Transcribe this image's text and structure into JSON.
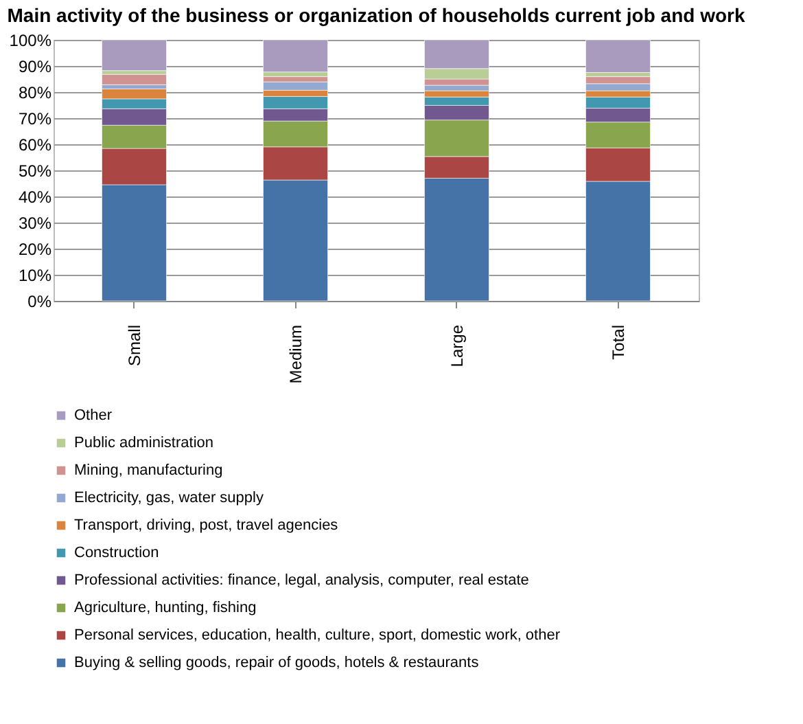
{
  "chart_data": {
    "type": "bar",
    "stacked": true,
    "title": "Main activity of the business or organization of households current job and work",
    "categories": [
      "Small",
      "Medium",
      "Large",
      "Total"
    ],
    "series": [
      {
        "name": "Buying & selling goods, repair of goods, hotels & restaurants",
        "color": "#4572a7",
        "values": [
          44.5,
          46.3,
          47.0,
          45.8
        ]
      },
      {
        "name": "Personal services, education, health, culture, sport, domestic work, other",
        "color": "#aa4643",
        "values": [
          13.9,
          12.7,
          8.3,
          12.8
        ]
      },
      {
        "name": "Agriculture, hunting, fishing",
        "color": "#89a54e",
        "values": [
          8.9,
          9.9,
          14.0,
          9.9
        ]
      },
      {
        "name": "Professional activities: finance, legal, analysis, computer, real estate",
        "color": "#71588f",
        "values": [
          6.3,
          4.7,
          5.6,
          5.3
        ]
      },
      {
        "name": "Construction",
        "color": "#4198af",
        "values": [
          3.8,
          4.7,
          3.2,
          4.3
        ]
      },
      {
        "name": "Transport, driving, post, travel agencies",
        "color": "#db843d",
        "values": [
          3.8,
          2.4,
          2.4,
          2.4
        ]
      },
      {
        "name": "Electricity, gas, water supply",
        "color": "#93a9cf",
        "values": [
          1.6,
          3.2,
          2.1,
          2.7
        ]
      },
      {
        "name": "Mining, manufacturing",
        "color": "#d19392",
        "values": [
          4.0,
          2.0,
          2.4,
          2.7
        ]
      },
      {
        "name": "Public administration",
        "color": "#b9cd96",
        "values": [
          1.4,
          1.8,
          4.0,
          1.6
        ]
      },
      {
        "name": "Other",
        "color": "#a99bbd",
        "values": [
          11.8,
          12.3,
          11.0,
          12.5
        ]
      }
    ],
    "ylim": [
      0,
      100
    ],
    "yticks": [
      {
        "value": 0,
        "label": "0%"
      },
      {
        "value": 10,
        "label": "10%"
      },
      {
        "value": 20,
        "label": "20%"
      },
      {
        "value": 30,
        "label": "30%"
      },
      {
        "value": 40,
        "label": "40%"
      },
      {
        "value": 50,
        "label": "50%"
      },
      {
        "value": 60,
        "label": "60%"
      },
      {
        "value": 70,
        "label": "70%"
      },
      {
        "value": 80,
        "label": "80%"
      },
      {
        "value": 90,
        "label": "90%"
      },
      {
        "value": 100,
        "label": "100%"
      }
    ],
    "grid": "y",
    "legend": "bottom"
  }
}
